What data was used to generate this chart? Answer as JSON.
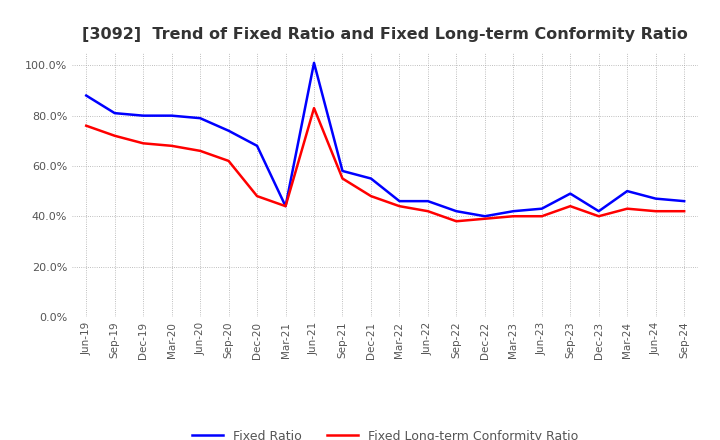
{
  "title": "[3092]  Trend of Fixed Ratio and Fixed Long-term Conformity Ratio",
  "title_fontsize": 11.5,
  "x_labels": [
    "Jun-19",
    "Sep-19",
    "Dec-19",
    "Mar-20",
    "Jun-20",
    "Sep-20",
    "Dec-20",
    "Mar-21",
    "Jun-21",
    "Sep-21",
    "Dec-21",
    "Mar-22",
    "Jun-22",
    "Sep-22",
    "Dec-22",
    "Mar-23",
    "Jun-23",
    "Sep-23",
    "Dec-23",
    "Mar-24",
    "Jun-24",
    "Sep-24"
  ],
  "fixed_ratio": [
    88,
    81,
    80,
    80,
    79,
    74,
    68,
    44,
    101,
    58,
    55,
    46,
    46,
    42,
    40,
    42,
    43,
    49,
    42,
    50,
    47,
    46
  ],
  "fixed_lt_ratio": [
    76,
    72,
    69,
    68,
    66,
    62,
    48,
    44,
    83,
    55,
    48,
    44,
    42,
    38,
    39,
    40,
    40,
    44,
    40,
    43,
    42,
    42
  ],
  "fixed_ratio_color": "#0000ff",
  "fixed_lt_ratio_color": "#ff0000",
  "ylim": [
    0,
    105
  ],
  "yticks": [
    0,
    20,
    40,
    60,
    80,
    100
  ],
  "grid_color": "#aaaaaa",
  "background_color": "#ffffff",
  "legend_labels": [
    "Fixed Ratio",
    "Fixed Long-term Conformity Ratio"
  ]
}
